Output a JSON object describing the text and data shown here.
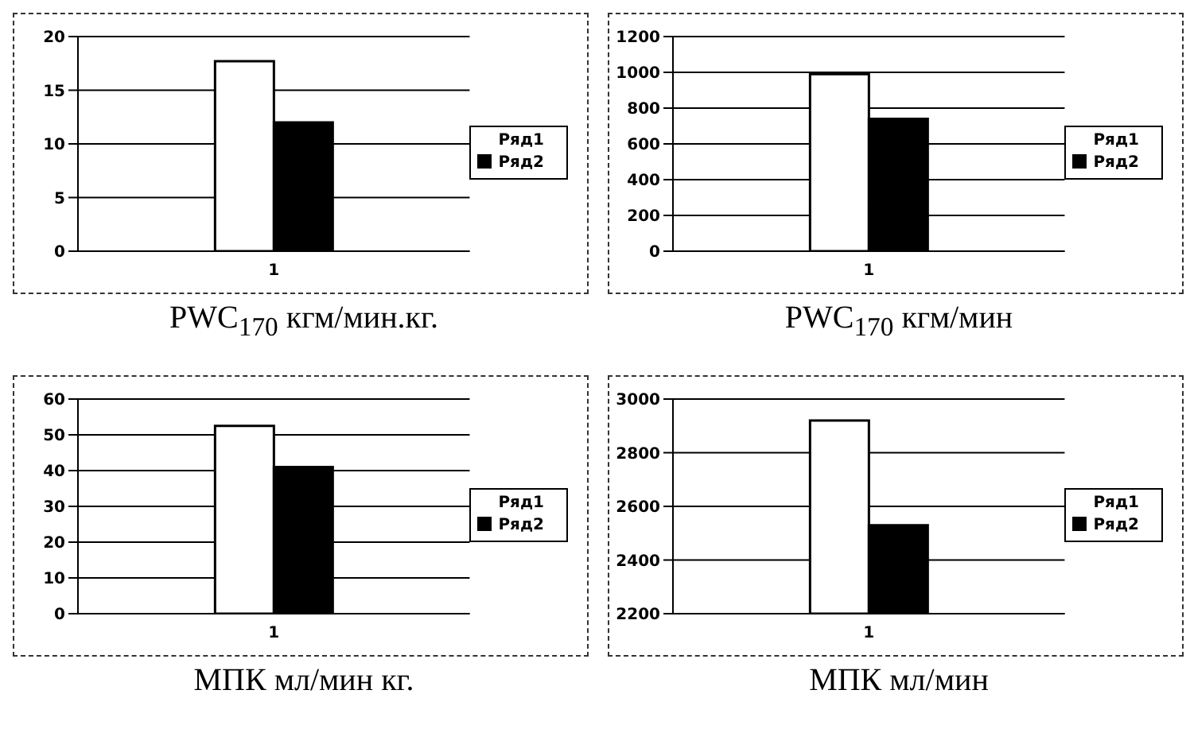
{
  "chart_data": [
    {
      "type": "bar",
      "xlabel": "PWC$_{170}$ кгм/мин.кг.",
      "categories": [
        "1"
      ],
      "series": [
        {
          "name": "Ряд1",
          "color": "#ffffff",
          "values": [
            17.7
          ]
        },
        {
          "name": "Ряд2",
          "color": "#000000",
          "values": [
            12
          ]
        }
      ],
      "ylim": [
        0,
        20
      ],
      "yticks": [
        0,
        5,
        10,
        15,
        20
      ],
      "grid": "y",
      "legend": "right"
    },
    {
      "type": "bar",
      "xlabel": "PWC$_{170}$ кгм/мин",
      "categories": [
        "1"
      ],
      "series": [
        {
          "name": "Ряд1",
          "color": "#ffffff",
          "values": [
            990
          ]
        },
        {
          "name": "Ряд2",
          "color": "#000000",
          "values": [
            740
          ]
        }
      ],
      "ylim": [
        0,
        1200
      ],
      "yticks": [
        0,
        200,
        400,
        600,
        800,
        1000,
        1200
      ],
      "grid": "y",
      "legend": "right"
    },
    {
      "type": "bar",
      "xlabel": "МПК мл/мин кг.",
      "categories": [
        "1"
      ],
      "series": [
        {
          "name": "Ряд1",
          "color": "#ffffff",
          "values": [
            52.5
          ]
        },
        {
          "name": "Ряд2",
          "color": "#000000",
          "values": [
            41
          ]
        }
      ],
      "ylim": [
        0,
        60
      ],
      "yticks": [
        0,
        10,
        20,
        30,
        40,
        50,
        60
      ],
      "grid": "y",
      "legend": "right"
    },
    {
      "type": "bar",
      "xlabel": "МПК мл/мин",
      "categories": [
        "1"
      ],
      "series": [
        {
          "name": "Ряд1",
          "color": "#ffffff",
          "values": [
            2920
          ]
        },
        {
          "name": "Ряд2",
          "color": "#000000",
          "values": [
            2530
          ]
        }
      ],
      "ylim": [
        2200,
        3000
      ],
      "yticks": [
        2200,
        2400,
        2600,
        2800,
        3000
      ],
      "grid": "y",
      "legend": "right"
    }
  ]
}
